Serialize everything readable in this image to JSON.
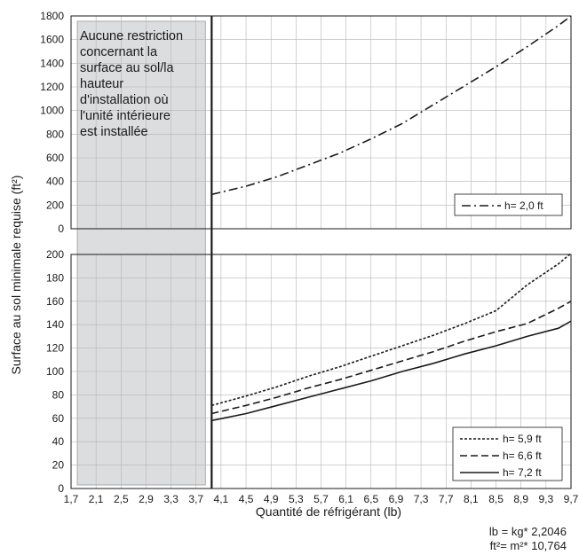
{
  "chart_data": [
    {
      "type": "line",
      "title": "",
      "xlabel": "Quantité de réfrigérant (lb)",
      "ylabel": "Surface au sol minimale requise (ft²)",
      "x_ticks": [
        "1,7",
        "2,1",
        "2,5",
        "2,9",
        "3,3",
        "3,7",
        "4,1",
        "4,5",
        "4,9",
        "5,3",
        "5,7",
        "6,1",
        "6,5",
        "6,9",
        "7,3",
        "7,7",
        "8,1",
        "8,5",
        "8,9",
        "9,3",
        "9,7"
      ],
      "y_ticks": [
        "0",
        "200",
        "400",
        "600",
        "800",
        "1000",
        "1200",
        "1400",
        "1600",
        "1800"
      ],
      "xlim": [
        1.7,
        9.7
      ],
      "ylim": [
        0,
        1800
      ],
      "grid": true,
      "legend": "bottom-right",
      "series": [
        {
          "name": "h= 2,0 ft",
          "style": "dash-dot",
          "x": [
            3.95,
            4.5,
            5.0,
            5.5,
            6.0,
            6.5,
            7.0,
            7.5,
            8.0,
            8.5,
            9.0,
            9.5,
            9.7
          ],
          "y": [
            290,
            360,
            440,
            540,
            640,
            760,
            890,
            1050,
            1210,
            1370,
            1540,
            1720,
            1800
          ]
        }
      ]
    },
    {
      "type": "line",
      "title": "",
      "xlabel": "Quantité de réfrigérant (lb)",
      "ylabel": "Surface au sol minimale requise (ft²)",
      "x_ticks": [
        "1,7",
        "2,1",
        "2,5",
        "2,9",
        "3,3",
        "3,7",
        "4,1",
        "4,5",
        "4,9",
        "5,3",
        "5,7",
        "6,1",
        "6,5",
        "6,9",
        "7,3",
        "7,7",
        "8,1",
        "8,5",
        "8,9",
        "9,3",
        "9,7"
      ],
      "y_ticks": [
        "0",
        "20",
        "40",
        "60",
        "80",
        "100",
        "120",
        "140",
        "160",
        "180",
        "200"
      ],
      "xlim": [
        1.7,
        9.7
      ],
      "ylim": [
        0,
        200
      ],
      "grid": true,
      "legend": "bottom-right",
      "series": [
        {
          "name": "h= 5,9 ft",
          "style": "dotted",
          "x": [
            3.95,
            4.5,
            5.0,
            5.5,
            6.0,
            6.5,
            7.0,
            7.5,
            8.0,
            8.5,
            9.0,
            9.5,
            9.7
          ],
          "y": [
            71,
            79,
            87,
            96,
            104,
            113,
            122,
            131,
            141,
            152,
            174,
            192,
            201
          ]
        },
        {
          "name": "h= 6,6 ft",
          "style": "dashed",
          "x": [
            3.95,
            4.5,
            5.0,
            5.5,
            6.0,
            6.5,
            7.0,
            7.5,
            8.0,
            8.5,
            9.0,
            9.5,
            9.7
          ],
          "y": [
            64,
            71,
            78,
            86,
            93,
            101,
            109,
            117,
            126,
            134,
            141,
            154,
            160
          ]
        },
        {
          "name": "h= 7,2 ft",
          "style": "solid",
          "x": [
            3.95,
            4.5,
            5.0,
            5.5,
            6.0,
            6.5,
            7.0,
            7.5,
            8.0,
            8.5,
            9.0,
            9.5,
            9.7
          ],
          "y": [
            58,
            64,
            71,
            78,
            85,
            92,
            100,
            107,
            115,
            122,
            130,
            137,
            143
          ]
        }
      ]
    }
  ],
  "annotation": {
    "lines": [
      "Aucune restriction",
      "concernant la",
      "surface au sol/la",
      "hauteur",
      "d'installation où",
      "l'unité intérieure",
      "est installée"
    ],
    "x_range": [
      1.8,
      3.85
    ],
    "fill": "#dcdddf"
  },
  "threshold_x": 3.95,
  "conversion": {
    "line1": "lb = kg* 2,2046",
    "line2": "ft²= m²* 10,764"
  }
}
